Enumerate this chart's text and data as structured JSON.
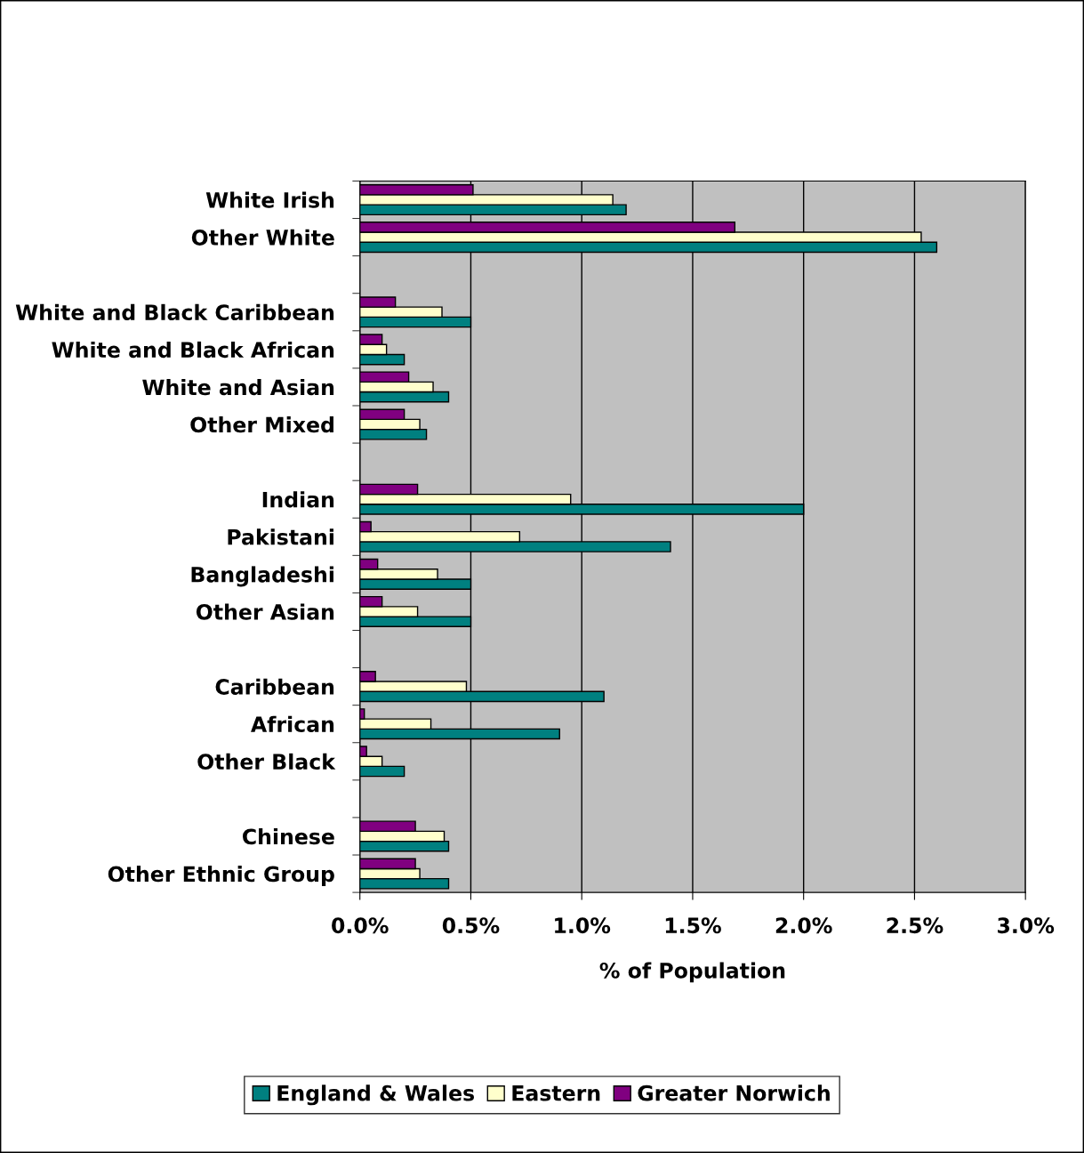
{
  "chart_data": {
    "type": "bar",
    "orientation": "horizontal",
    "xlabel": "% of Population",
    "categories": [
      "White Irish",
      "Other White",
      null,
      "White and Black Caribbean",
      "White and Black African",
      "White and Asian",
      "Other Mixed",
      null,
      "Indian",
      "Pakistani",
      "Bangladeshi",
      "Other Asian",
      null,
      "Caribbean",
      "African",
      "Other Black",
      null,
      "Chinese",
      "Other Ethnic Group"
    ],
    "series": [
      {
        "name": "England & Wales",
        "color": "#008080",
        "values": [
          1.2,
          2.6,
          null,
          0.5,
          0.2,
          0.4,
          0.3,
          null,
          2.0,
          1.4,
          0.5,
          0.5,
          null,
          1.1,
          0.9,
          0.2,
          null,
          0.4,
          0.4
        ]
      },
      {
        "name": "Eastern",
        "color": "#ffffcc",
        "values": [
          1.14,
          2.53,
          null,
          0.37,
          0.12,
          0.33,
          0.27,
          null,
          0.95,
          0.72,
          0.35,
          0.26,
          null,
          0.48,
          0.32,
          0.1,
          null,
          0.38,
          0.27
        ]
      },
      {
        "name": "Greater Norwich",
        "color": "#800080",
        "values": [
          0.51,
          1.69,
          null,
          0.16,
          0.1,
          0.22,
          0.2,
          null,
          0.26,
          0.05,
          0.08,
          0.1,
          null,
          0.07,
          0.02,
          0.03,
          null,
          0.25,
          0.25
        ]
      }
    ],
    "xlim": [
      0,
      3.0
    ],
    "xticks": [
      {
        "value": 0,
        "label": "0.0%"
      },
      {
        "value": 0.5,
        "label": "0.5%"
      },
      {
        "value": 1.0,
        "label": "1.0%"
      },
      {
        "value": 1.5,
        "label": "1.5%"
      },
      {
        "value": 2.0,
        "label": "2.0%"
      },
      {
        "value": 2.5,
        "label": "2.5%"
      },
      {
        "value": 3.0,
        "label": "3.0%"
      }
    ],
    "grid": "x",
    "legend": "bottom"
  }
}
